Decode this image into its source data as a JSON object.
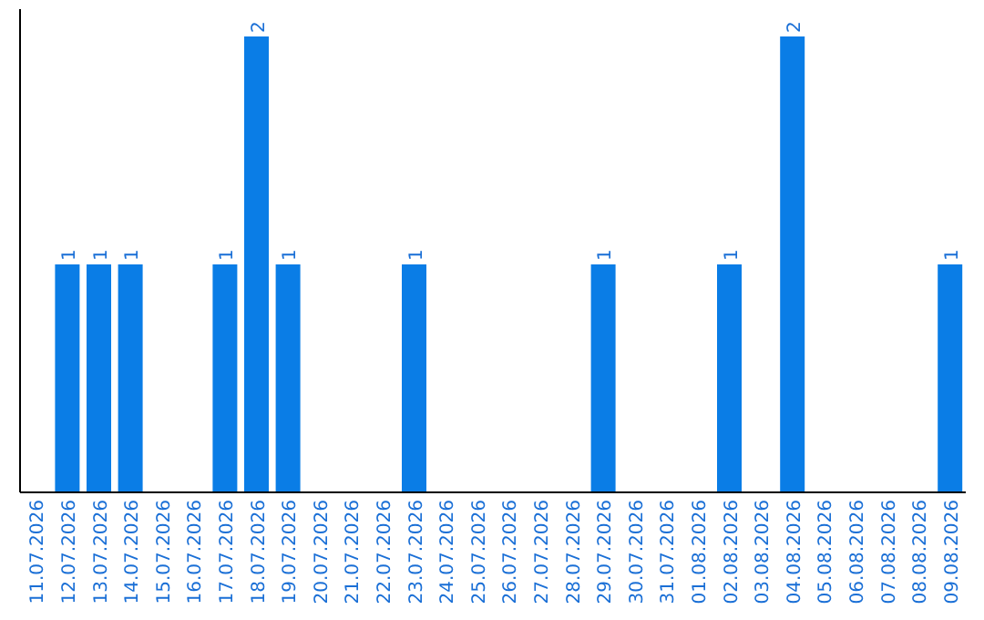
{
  "chart_data": {
    "type": "bar",
    "categories": [
      "11.07.2026",
      "12.07.2026",
      "13.07.2026",
      "14.07.2026",
      "15.07.2026",
      "16.07.2026",
      "17.07.2026",
      "18.07.2026",
      "19.07.2026",
      "20.07.2026",
      "21.07.2026",
      "22.07.2026",
      "23.07.2026",
      "24.07.2026",
      "25.07.2026",
      "26.07.2026",
      "27.07.2026",
      "28.07.2026",
      "29.07.2026",
      "30.07.2026",
      "31.07.2026",
      "01.08.2026",
      "02.08.2026",
      "03.08.2026",
      "04.08.2026",
      "05.08.2026",
      "06.08.2026",
      "07.08.2026",
      "08.08.2026",
      "09.08.2026"
    ],
    "values": [
      0,
      1,
      1,
      1,
      0,
      0,
      1,
      2,
      1,
      0,
      0,
      0,
      1,
      0,
      0,
      0,
      0,
      0,
      1,
      0,
      0,
      0,
      1,
      0,
      2,
      0,
      0,
      0,
      0,
      1
    ],
    "value_labels": [
      null,
      "1",
      "1",
      "1",
      null,
      null,
      "1",
      "2",
      "1",
      null,
      null,
      null,
      "1",
      null,
      null,
      null,
      null,
      null,
      "1",
      null,
      null,
      null,
      "1",
      null,
      "2",
      null,
      null,
      null,
      null,
      "1"
    ],
    "color": "#0a7de6"
  }
}
